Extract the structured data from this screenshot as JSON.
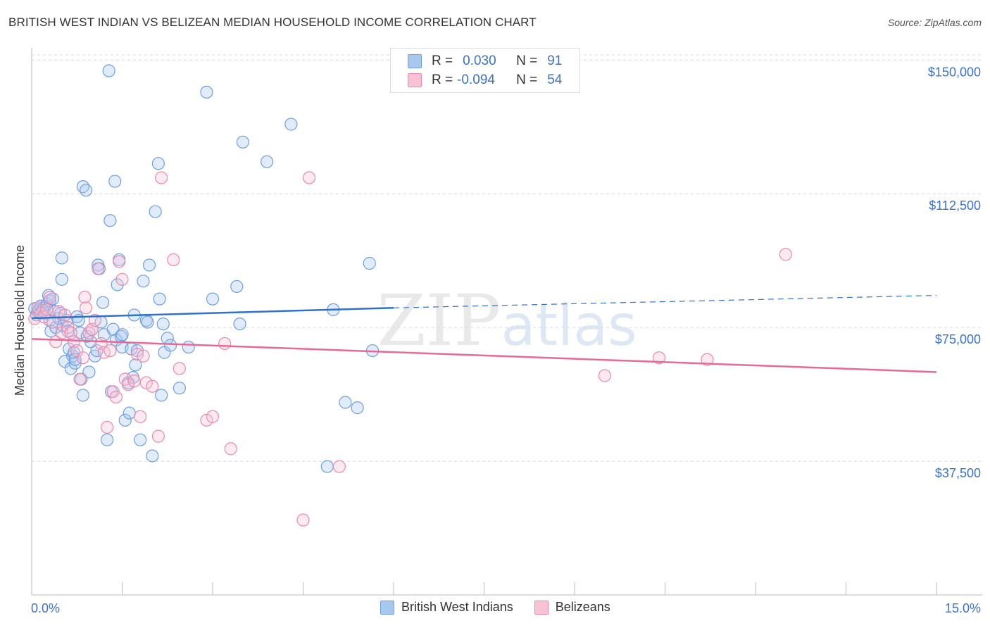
{
  "header": {
    "title": "BRITISH WEST INDIAN VS BELIZEAN MEDIAN HOUSEHOLD INCOME CORRELATION CHART",
    "source": "Source: ZipAtlas.com"
  },
  "watermark": "ZIPatlas",
  "legend": {
    "rows": [
      {
        "r_label": "R =",
        "r_value": "0.030",
        "n_label": "N =",
        "n_value": "91",
        "color": "#a9c8f0",
        "border": "#6f9fe0"
      },
      {
        "r_label": "R =",
        "r_value": "-0.094",
        "n_label": "N =",
        "n_value": "54",
        "color": "#f9c2d4",
        "border": "#ea8aab"
      }
    ]
  },
  "bottom_legend": {
    "items": [
      {
        "label": "British West Indians",
        "color": "#a9c8f0",
        "border": "#6f9fe0"
      },
      {
        "label": "Belizeans",
        "color": "#f9c2d4",
        "border": "#ea8aab"
      }
    ]
  },
  "chart_data": {
    "type": "scatter",
    "title": "BRITISH WEST INDIAN VS BELIZEAN MEDIAN HOUSEHOLD INCOME CORRELATION CHART",
    "xlabel": "",
    "ylabel": "Median Household Income",
    "xlim": [
      0,
      15
    ],
    "ylim": [
      0,
      155000
    ],
    "x_tick_labels": {
      "left": "0.0%",
      "right": "15.0%"
    },
    "y_ticks": [
      {
        "value": 37500,
        "label": "$37,500"
      },
      {
        "value": 75000,
        "label": "$75,000"
      },
      {
        "value": 112500,
        "label": "$112,500"
      },
      {
        "value": 150000,
        "label": "$150,000"
      }
    ],
    "grid": true,
    "series": [
      {
        "name": "British West Indians",
        "color": "#6f9fe0",
        "fill": "rgba(169,200,240,0.35)",
        "trend": {
          "x0": 0,
          "y0": 77600,
          "x1": 6,
          "y1": 80500,
          "dashed_to": 15,
          "dashed_y": 84000,
          "color": "#2f72cc"
        },
        "points": [
          [
            0.05,
            80300
          ],
          [
            0.08,
            78500
          ],
          [
            0.1,
            79500
          ],
          [
            0.12,
            80000
          ],
          [
            0.15,
            81000
          ],
          [
            0.18,
            79800
          ],
          [
            0.2,
            80500
          ],
          [
            0.22,
            79000
          ],
          [
            0.25,
            81500
          ],
          [
            0.28,
            84000
          ],
          [
            0.3,
            82500
          ],
          [
            0.3,
            77000
          ],
          [
            0.32,
            74000
          ],
          [
            0.35,
            83000
          ],
          [
            0.38,
            79500
          ],
          [
            0.4,
            75000
          ],
          [
            0.45,
            77500
          ],
          [
            0.48,
            79000
          ],
          [
            0.5,
            88500
          ],
          [
            0.5,
            94500
          ],
          [
            0.52,
            75500
          ],
          [
            0.55,
            65500
          ],
          [
            0.58,
            77000
          ],
          [
            0.6,
            74000
          ],
          [
            0.62,
            69000
          ],
          [
            0.65,
            63500
          ],
          [
            0.68,
            67000
          ],
          [
            0.7,
            68000
          ],
          [
            0.72,
            65000
          ],
          [
            0.72,
            66000
          ],
          [
            0.75,
            78000
          ],
          [
            0.78,
            77000
          ],
          [
            0.8,
            73500
          ],
          [
            0.82,
            60500
          ],
          [
            0.85,
            56000
          ],
          [
            0.85,
            114500
          ],
          [
            0.9,
            113500
          ],
          [
            0.92,
            72500
          ],
          [
            0.95,
            62500
          ],
          [
            0.98,
            71000
          ],
          [
            1.0,
            74500
          ],
          [
            1.05,
            67000
          ],
          [
            1.08,
            68500
          ],
          [
            1.1,
            92500
          ],
          [
            1.12,
            91500
          ],
          [
            1.15,
            76500
          ],
          [
            1.18,
            82000
          ],
          [
            1.2,
            73000
          ],
          [
            1.25,
            43500
          ],
          [
            1.28,
            147000
          ],
          [
            1.3,
            105000
          ],
          [
            1.32,
            57000
          ],
          [
            1.35,
            74500
          ],
          [
            1.38,
            116000
          ],
          [
            1.4,
            71500
          ],
          [
            1.42,
            87000
          ],
          [
            1.45,
            94000
          ],
          [
            1.48,
            72500
          ],
          [
            1.5,
            69500
          ],
          [
            1.5,
            73000
          ],
          [
            1.55,
            49000
          ],
          [
            1.6,
            59500
          ],
          [
            1.62,
            51000
          ],
          [
            1.65,
            69000
          ],
          [
            1.68,
            61000
          ],
          [
            1.7,
            78500
          ],
          [
            1.72,
            64500
          ],
          [
            1.75,
            68500
          ],
          [
            1.8,
            43500
          ],
          [
            1.85,
            88000
          ],
          [
            1.9,
            77000
          ],
          [
            1.92,
            76500
          ],
          [
            1.95,
            92500
          ],
          [
            2.0,
            39000
          ],
          [
            2.05,
            107500
          ],
          [
            2.1,
            121000
          ],
          [
            2.12,
            83000
          ],
          [
            2.15,
            56000
          ],
          [
            2.18,
            76000
          ],
          [
            2.2,
            68000
          ],
          [
            2.25,
            72000
          ],
          [
            2.3,
            70000
          ],
          [
            2.45,
            58000
          ],
          [
            2.6,
            69500
          ],
          [
            2.9,
            141000
          ],
          [
            3.0,
            83000
          ],
          [
            3.4,
            86500
          ],
          [
            3.45,
            76000
          ],
          [
            3.5,
            127000
          ],
          [
            3.9,
            121500
          ],
          [
            4.3,
            132000
          ],
          [
            4.9,
            36000
          ],
          [
            5.0,
            80000
          ],
          [
            5.2,
            54000
          ],
          [
            5.4,
            52500
          ],
          [
            5.6,
            93000
          ],
          [
            5.65,
            68500
          ]
        ]
      },
      {
        "name": "Belizeans",
        "color": "#ea8aab",
        "fill": "rgba(249,194,212,0.35)",
        "trend": {
          "x0": 0,
          "y0": 71800,
          "x1": 15,
          "y1": 62500,
          "color": "#e76a95"
        },
        "points": [
          [
            0.05,
            77500
          ],
          [
            0.1,
            80500
          ],
          [
            0.15,
            79000
          ],
          [
            0.2,
            78000
          ],
          [
            0.25,
            80000
          ],
          [
            0.3,
            83500
          ],
          [
            0.35,
            76500
          ],
          [
            0.4,
            71000
          ],
          [
            0.45,
            79500
          ],
          [
            0.5,
            73500
          ],
          [
            0.55,
            78500
          ],
          [
            0.6,
            75000
          ],
          [
            0.65,
            73500
          ],
          [
            0.7,
            71000
          ],
          [
            0.75,
            68500
          ],
          [
            0.8,
            60500
          ],
          [
            0.85,
            66500
          ],
          [
            0.88,
            83500
          ],
          [
            0.9,
            80500
          ],
          [
            0.95,
            73500
          ],
          [
            1.0,
            74500
          ],
          [
            1.05,
            77000
          ],
          [
            1.1,
            91500
          ],
          [
            1.15,
            70500
          ],
          [
            1.2,
            68000
          ],
          [
            1.25,
            47000
          ],
          [
            1.3,
            68500
          ],
          [
            1.35,
            57000
          ],
          [
            1.4,
            55500
          ],
          [
            1.45,
            93500
          ],
          [
            1.5,
            88500
          ],
          [
            1.55,
            60500
          ],
          [
            1.6,
            59000
          ],
          [
            1.7,
            60000
          ],
          [
            1.75,
            67500
          ],
          [
            1.8,
            50000
          ],
          [
            1.85,
            67000
          ],
          [
            1.9,
            59500
          ],
          [
            2.0,
            58500
          ],
          [
            2.1,
            44500
          ],
          [
            2.15,
            117000
          ],
          [
            2.35,
            94000
          ],
          [
            2.45,
            63500
          ],
          [
            2.9,
            49000
          ],
          [
            3.0,
            50000
          ],
          [
            3.2,
            70500
          ],
          [
            3.3,
            41000
          ],
          [
            4.5,
            21000
          ],
          [
            4.6,
            117000
          ],
          [
            5.1,
            36000
          ],
          [
            9.5,
            61500
          ],
          [
            10.4,
            66500
          ],
          [
            11.2,
            66000
          ],
          [
            12.5,
            95500
          ]
        ]
      }
    ]
  }
}
